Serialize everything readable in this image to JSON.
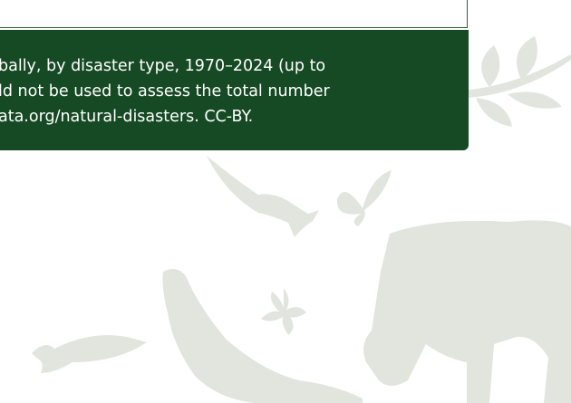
{
  "caption": {
    "lines": [
      "bally, by disaster type, 1970–2024 (up to",
      "ld not be used to assess the total number",
      "ata.org/natural-disasters. CC-BY."
    ]
  }
}
